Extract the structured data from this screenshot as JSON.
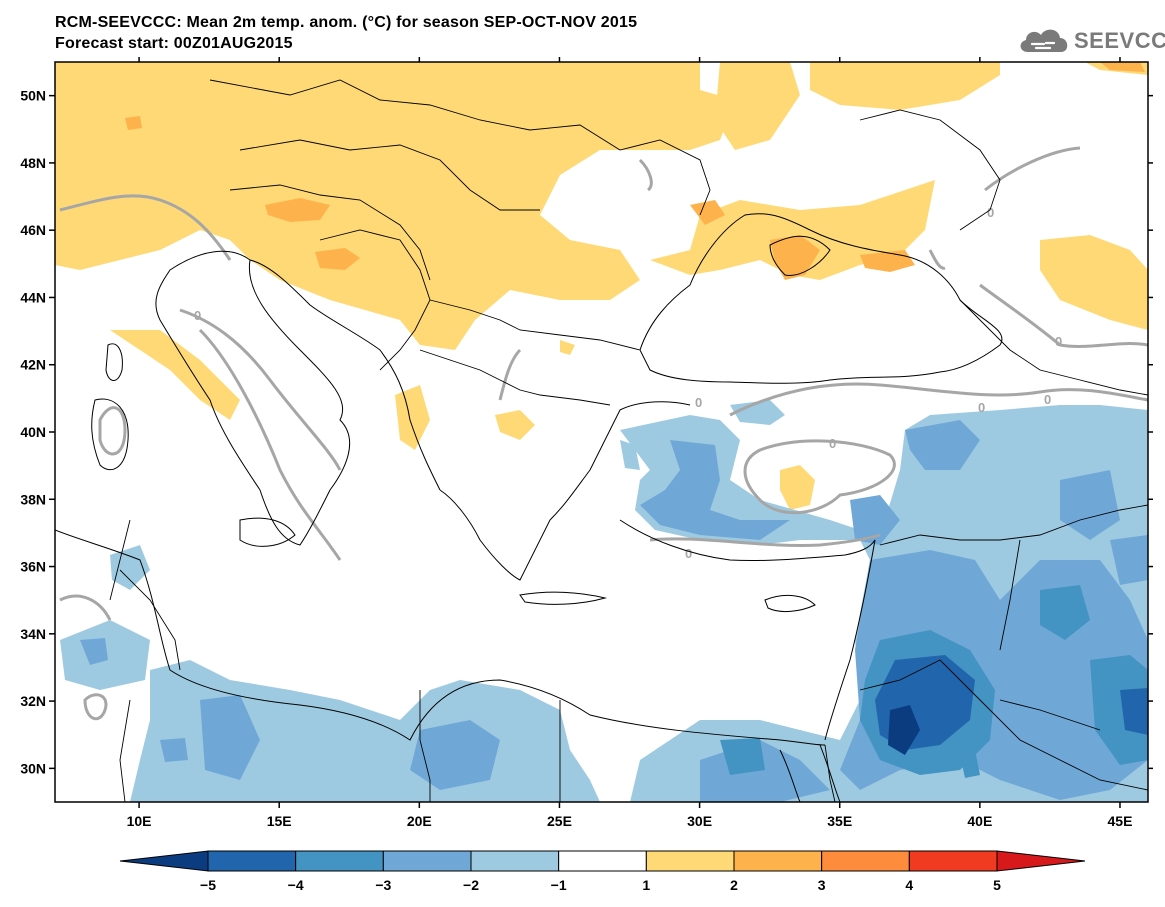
{
  "title": {
    "line1": "RCM-SEEVCCC: Mean 2m temp. anom. (°C) for season SEP-OCT-NOV 2015",
    "line2": "Forecast start: 00Z01AUG2015"
  },
  "logo": {
    "text": "SEEVCCC",
    "icon": "cloud-icon",
    "color": "#7a7a7a"
  },
  "map": {
    "lon_range": [
      7,
      46
    ],
    "lat_range": [
      29,
      51
    ],
    "lon_ticks": [
      {
        "value": 10,
        "label": "10E"
      },
      {
        "value": 15,
        "label": "15E"
      },
      {
        "value": 20,
        "label": "20E"
      },
      {
        "value": 25,
        "label": "25E"
      },
      {
        "value": 30,
        "label": "30E"
      },
      {
        "value": 35,
        "label": "35E"
      },
      {
        "value": 40,
        "label": "40E"
      },
      {
        "value": 45,
        "label": "45E"
      }
    ],
    "lat_ticks": [
      {
        "value": 30,
        "label": "30N"
      },
      {
        "value": 32,
        "label": "32N"
      },
      {
        "value": 34,
        "label": "34N"
      },
      {
        "value": 36,
        "label": "36N"
      },
      {
        "value": 38,
        "label": "38N"
      },
      {
        "value": 40,
        "label": "40N"
      },
      {
        "value": 42,
        "label": "42N"
      },
      {
        "value": 44,
        "label": "44N"
      },
      {
        "value": 46,
        "label": "46N"
      },
      {
        "value": 48,
        "label": "48N"
      },
      {
        "value": 50,
        "label": "50N"
      }
    ],
    "zero_contour_label": "0"
  },
  "colorbar": {
    "levels": [
      "−5",
      "−4",
      "−3",
      "−2",
      "−1",
      "1",
      "2",
      "3",
      "4",
      "5"
    ],
    "colors": [
      "#0b3c80",
      "#2166ac",
      "#4393c3",
      "#6fa8d6",
      "#9ecae1",
      "#ffffff",
      "#fed976",
      "#feb24c",
      "#fd8d3c",
      "#f03b20",
      "#d7191c"
    ]
  }
}
